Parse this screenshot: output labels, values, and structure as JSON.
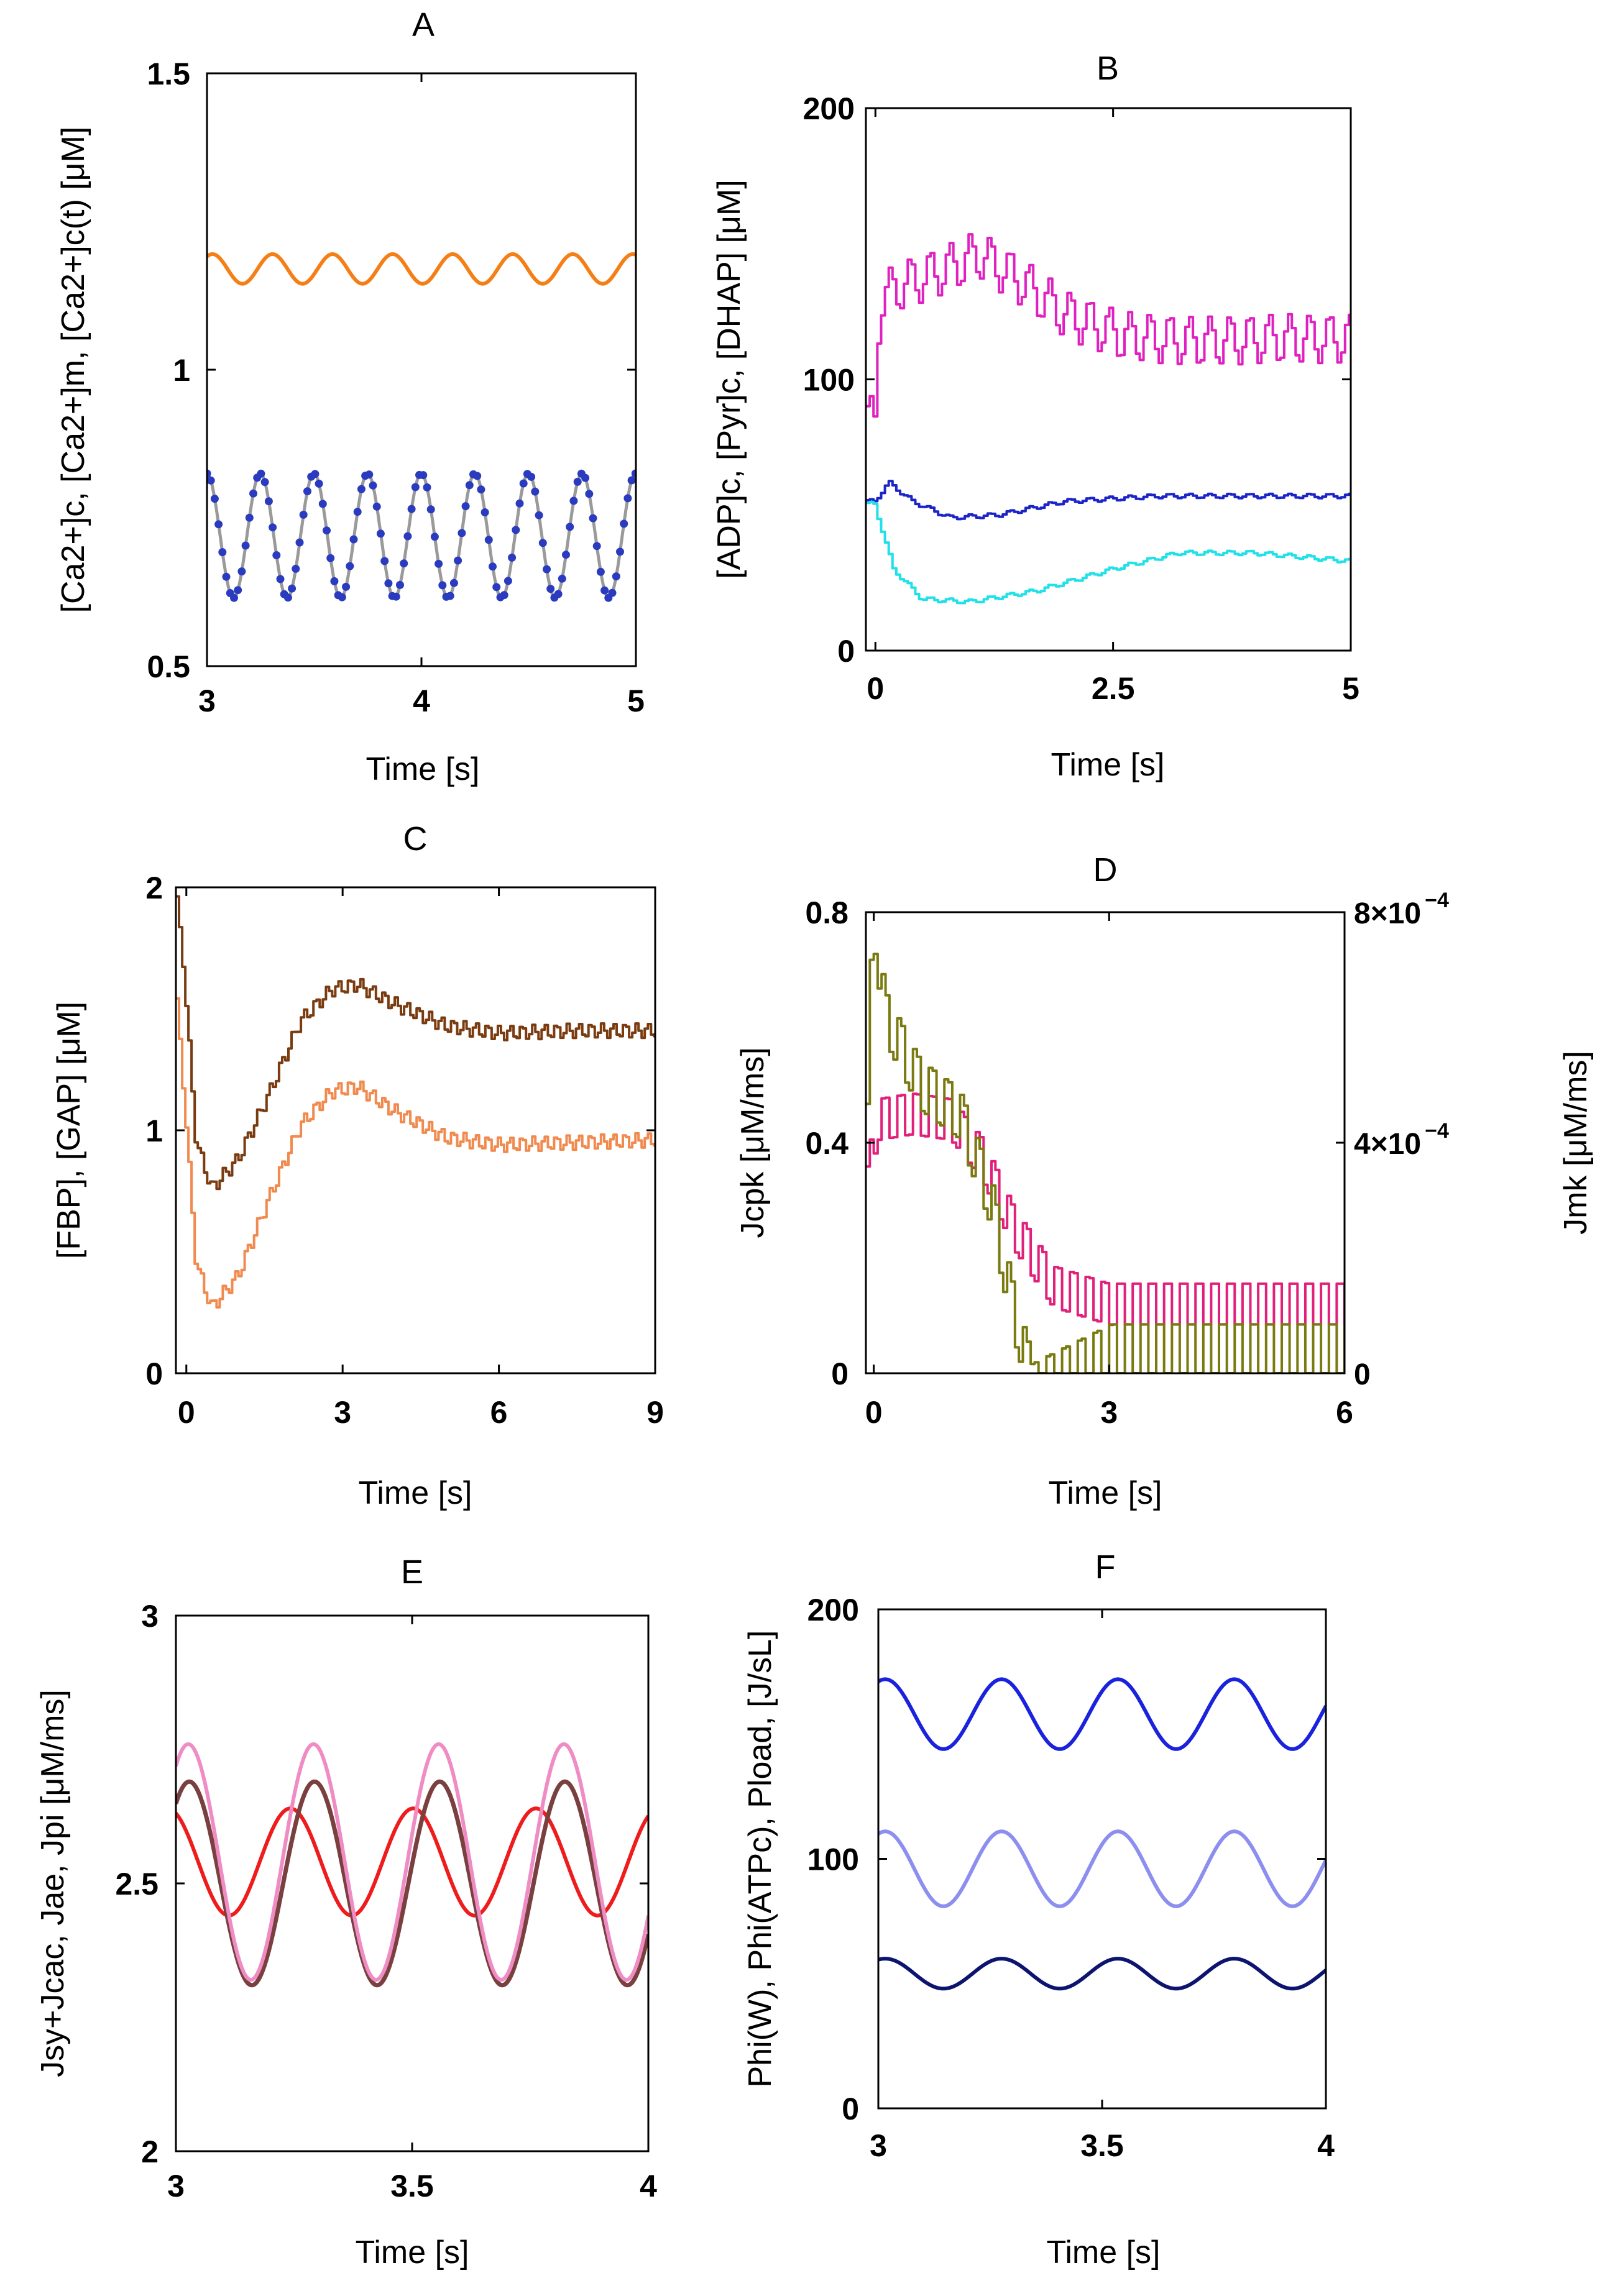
{
  "figure": {
    "background": "#ffffff"
  },
  "chart_data": [
    {
      "id": "A",
      "type": "line",
      "title": "A",
      "xlabel": "Time  [s]",
      "ylabel": "[Ca2+]c, [Ca2+]m, [Ca2+]c(t)  [μM]",
      "xlim": [
        3,
        5
      ],
      "ylim": [
        0.5,
        1.5
      ],
      "xticks": [
        3,
        4,
        5
      ],
      "xtick_labels": [
        "3",
        "4",
        "5"
      ],
      "yticks": [
        0.5,
        1,
        1.5
      ],
      "ytick_labels": [
        "0.5",
        "1",
        "1.5"
      ],
      "grid": false,
      "legend": "none",
      "series": [
        {
          "color": "#f57f17",
          "width": 6,
          "style": "solid",
          "wave": {
            "base": 1.17,
            "amp": 0.025,
            "period": 0.28,
            "phase": 1.0
          }
        },
        {
          "color": "#9a9a9a",
          "width": 5,
          "style": "solid",
          "wave": {
            "base": 0.72,
            "amp": 0.105,
            "period": 0.25,
            "phase": 1.6
          }
        },
        {
          "color": "#2a3bc0",
          "width": 0,
          "style": "markers",
          "marker_radius": 6.5,
          "marker_spacing": 0.018,
          "wave": {
            "base": 0.72,
            "amp": 0.105,
            "period": 0.25,
            "phase": 1.6
          }
        }
      ]
    },
    {
      "id": "B",
      "type": "line",
      "title": "B",
      "xlabel": "Time  [s]",
      "ylabel": "[ADP]c, [Pyr]c, [DHAP]  [μM]",
      "xlim": [
        -0.1,
        5
      ],
      "ylim": [
        0,
        200
      ],
      "xticks": [
        0,
        2.5,
        5
      ],
      "xtick_labels": [
        "0",
        "2.5",
        "5"
      ],
      "yticks": [
        0,
        100,
        200
      ],
      "ytick_labels": [
        "0",
        "100",
        "200"
      ],
      "grid": false,
      "legend": "none",
      "series": [
        {
          "color": "#e020c0",
          "width": 4,
          "style": "step",
          "step": 0.04,
          "envelope": [
            [
              0,
              85
            ],
            [
              0.05,
              130
            ],
            [
              0.3,
              135
            ],
            [
              0.7,
              140
            ],
            [
              1.1,
              146
            ],
            [
              1.5,
              137
            ],
            [
              2.0,
              124
            ],
            [
              2.6,
              116
            ],
            [
              3.4,
              114
            ],
            [
              4.2,
              115
            ],
            [
              5,
              115
            ]
          ],
          "wave": {
            "amp": 9,
            "period": 0.21,
            "phase": 0
          }
        },
        {
          "color": "#1c24c8",
          "width": 4,
          "style": "step",
          "step": 0.04,
          "envelope": [
            [
              0,
              55
            ],
            [
              0.15,
              62
            ],
            [
              0.4,
              55
            ],
            [
              0.8,
              49
            ],
            [
              1.3,
              50
            ],
            [
              2.0,
              55
            ],
            [
              3.0,
              57
            ],
            [
              4.0,
              57
            ],
            [
              5,
              57
            ]
          ],
          "wave": {
            "amp": 0.8,
            "period": 0.21,
            "phase": 0
          }
        },
        {
          "color": "#20e0e8",
          "width": 4,
          "style": "step",
          "step": 0.04,
          "envelope": [
            [
              0,
              54
            ],
            [
              0.2,
              30
            ],
            [
              0.5,
              19
            ],
            [
              1.0,
              18
            ],
            [
              1.7,
              22
            ],
            [
              2.5,
              30
            ],
            [
              3.2,
              36
            ],
            [
              4.0,
              36
            ],
            [
              5,
              33
            ]
          ],
          "wave": {
            "amp": 0.8,
            "period": 0.21,
            "phase": 0
          }
        }
      ]
    },
    {
      "id": "C",
      "type": "line",
      "title": "C",
      "xlabel": "Time [s]",
      "ylabel": "[FBP], [GAP]  [μM]",
      "xlim": [
        -0.2,
        9
      ],
      "ylim": [
        0,
        2
      ],
      "xticks": [
        0,
        3,
        6,
        9
      ],
      "xtick_labels": [
        "0",
        "3",
        "6",
        "9"
      ],
      "yticks": [
        0,
        1,
        2
      ],
      "ytick_labels": [
        "0",
        "1",
        "2"
      ],
      "grid": false,
      "legend": "none",
      "series": [
        {
          "color": "#7a3b10",
          "width": 4,
          "style": "step",
          "step": 0.06,
          "envelope": [
            [
              -0.2,
              2.0
            ],
            [
              -0.05,
              1.7
            ],
            [
              0.2,
              0.95
            ],
            [
              0.5,
              0.76
            ],
            [
              1.0,
              0.88
            ],
            [
              1.6,
              1.15
            ],
            [
              2.2,
              1.45
            ],
            [
              2.8,
              1.58
            ],
            [
              3.3,
              1.6
            ],
            [
              4.0,
              1.52
            ],
            [
              5.0,
              1.43
            ],
            [
              6.0,
              1.4
            ],
            [
              7.5,
              1.41
            ],
            [
              9,
              1.41
            ]
          ],
          "wave": {
            "amp": 0.03,
            "period": 0.22,
            "phase": 0
          }
        },
        {
          "color": "#f08a4e",
          "width": 4,
          "style": "step",
          "step": 0.06,
          "envelope": [
            [
              -0.2,
              1.6
            ],
            [
              -0.05,
              1.2
            ],
            [
              0.2,
              0.45
            ],
            [
              0.5,
              0.27
            ],
            [
              1.0,
              0.4
            ],
            [
              1.6,
              0.72
            ],
            [
              2.2,
              1.02
            ],
            [
              2.8,
              1.16
            ],
            [
              3.3,
              1.18
            ],
            [
              4.0,
              1.08
            ],
            [
              5.0,
              0.97
            ],
            [
              6.0,
              0.94
            ],
            [
              7.5,
              0.95
            ],
            [
              9,
              0.96
            ]
          ],
          "wave": {
            "amp": 0.03,
            "period": 0.22,
            "phase": 0
          }
        }
      ]
    },
    {
      "id": "D",
      "type": "line",
      "title": "D",
      "xlabel": "Time [s]",
      "ylabel": "Jcpk [μM/ms]",
      "ylabel_right": "Jmk [μM/ms]",
      "xlim": [
        -0.1,
        6
      ],
      "ylim": [
        0,
        0.8
      ],
      "xticks": [
        0,
        3,
        6
      ],
      "xtick_labels": [
        "0",
        "3",
        "6"
      ],
      "yticks": [
        0,
        0.4,
        0.8
      ],
      "ytick_labels": [
        "0",
        "0.4",
        "0.8"
      ],
      "ylim_right": [
        0,
        0.0008
      ],
      "yticks_right": [
        0,
        0.0004,
        0.0008
      ],
      "ytick_labels_right": [
        {
          "base": "0",
          "exp": ""
        },
        {
          "base": "4×10",
          "exp": "−4"
        },
        {
          "base": "8×10",
          "exp": "−4"
        }
      ],
      "grid": false,
      "legend": "none",
      "series": [
        {
          "color": "#e0207a",
          "width": 4,
          "style": "step",
          "step": 0.05,
          "envelope": [
            [
              -0.1,
              0.3
            ],
            [
              0.05,
              0.44
            ],
            [
              0.5,
              0.45
            ],
            [
              1.0,
              0.44
            ],
            [
              1.4,
              0.37
            ],
            [
              1.8,
              0.25
            ],
            [
              2.3,
              0.15
            ],
            [
              3.0,
              0.12
            ],
            [
              4.0,
              0.12
            ],
            [
              6,
              0.12
            ]
          ],
          "wave": {
            "amp": 0.05,
            "period": 0.2,
            "phase": 0
          }
        },
        {
          "color": "#7a7a10",
          "width": 4,
          "style": "step",
          "step": 0.05,
          "envelope": [
            [
              -0.1,
              0.3
            ],
            [
              0.0,
              0.8
            ],
            [
              0.15,
              0.62
            ],
            [
              0.6,
              0.5
            ],
            [
              1.1,
              0.45
            ],
            [
              1.5,
              0.3
            ],
            [
              1.8,
              0.1
            ],
            [
              2.0,
              0.0
            ],
            [
              3.0,
              0.0
            ],
            [
              4.0,
              0.0
            ],
            [
              6,
              0.0
            ]
          ],
          "wave": {
            "amp": 0.06,
            "period": 0.2,
            "phase": 0
          },
          "spikes": {
            "from": 2.0,
            "growth": 0.016
          }
        }
      ]
    },
    {
      "id": "E",
      "type": "line",
      "title": "E",
      "xlabel": "Time [s]",
      "ylabel": "Jsy+Jcac, Jae, Jpi  [μM/ms]",
      "xlim": [
        3,
        4
      ],
      "ylim": [
        2,
        3
      ],
      "xticks": [
        3,
        3.5,
        4
      ],
      "xtick_labels": [
        "3",
        "3.5",
        "4"
      ],
      "yticks": [
        2,
        2.5,
        3
      ],
      "ytick_labels": [
        "2",
        "2.5",
        "3"
      ],
      "grid": false,
      "legend": "none",
      "series": [
        {
          "color": "#ee1c1c",
          "width": 6,
          "style": "solid",
          "wave": {
            "base": 2.54,
            "amp": 0.1,
            "period": 0.26,
            "phase": 2.0
          }
        },
        {
          "color": "#7a4040",
          "width": 7,
          "style": "solid",
          "wave": {
            "base": 2.5,
            "amp": 0.19,
            "period": 0.265,
            "phase": 0.9
          }
        },
        {
          "color": "#f08cc4",
          "width": 6,
          "style": "solid",
          "wave": {
            "base": 2.54,
            "amp": 0.22,
            "period": 0.265,
            "phase": 0.95
          }
        }
      ]
    },
    {
      "id": "F",
      "type": "line",
      "title": "F",
      "xlabel": "Time [s]",
      "ylabel": "Phi(W), Phi(ATPc), Pload, [J/sL]",
      "xlim": [
        3,
        4
      ],
      "ylim": [
        0,
        200
      ],
      "xticks": [
        3,
        3.5,
        4
      ],
      "xtick_labels": [
        "3",
        "3.5",
        "4"
      ],
      "yticks": [
        0,
        100,
        200
      ],
      "ytick_labels": [
        "0",
        "100",
        "200"
      ],
      "grid": false,
      "legend": "none",
      "series": [
        {
          "color": "#1a22dd",
          "width": 6,
          "style": "solid",
          "wave": {
            "base": 158,
            "amp": 14,
            "period": 0.26,
            "phase": 1.2
          }
        },
        {
          "color": "#8c8ef0",
          "width": 6,
          "style": "solid",
          "wave": {
            "base": 96,
            "amp": 15,
            "period": 0.26,
            "phase": 1.2
          }
        },
        {
          "color": "#0c1470",
          "width": 6,
          "style": "solid",
          "wave": {
            "base": 54,
            "amp": 6,
            "period": 0.26,
            "phase": 1.2
          }
        }
      ]
    }
  ]
}
